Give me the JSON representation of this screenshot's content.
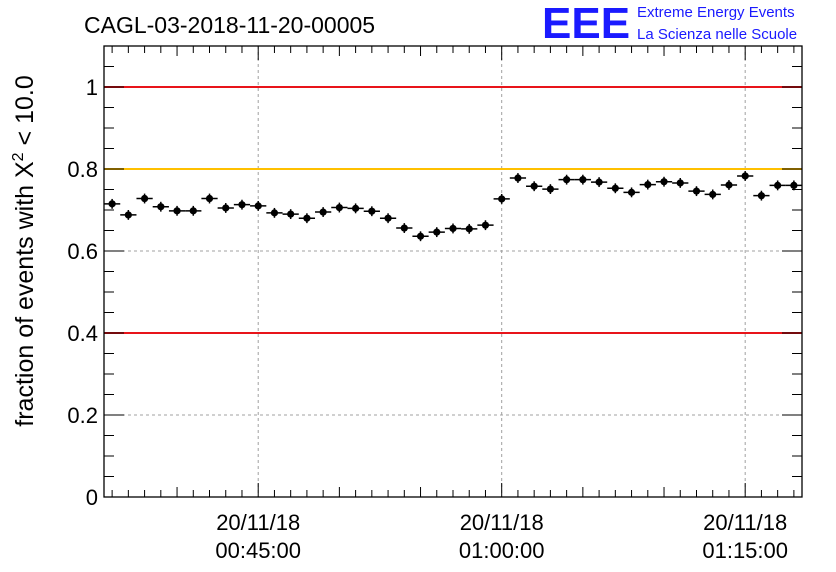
{
  "chart_data": {
    "type": "scatter",
    "title": "CAGL-03-2018-11-20-00005",
    "ylabel": "fraction of events with Χ² < 10.0",
    "ylabel_parts": {
      "pre": "fraction of events with Χ",
      "sup": "2",
      "post": " < 10.0"
    },
    "xlabel": "",
    "ylim": [
      0,
      1.1
    ],
    "x_time_range": [
      "20/11/18 00:35:30",
      "20/11/18 01:18:30"
    ],
    "yticks": [
      "0",
      "0.2",
      "0.4",
      "0.6",
      "0.8",
      "1"
    ],
    "xticks": [
      {
        "date": "20/11/18",
        "time": "00:45:00",
        "minutes": 45
      },
      {
        "date": "20/11/18",
        "time": "01:00:00",
        "minutes": 60
      },
      {
        "date": "20/11/18",
        "time": "01:15:00",
        "minutes": 75
      }
    ],
    "grid": true,
    "reference_lines": [
      {
        "y": 1.0,
        "color": "#e8141a"
      },
      {
        "y": 0.8,
        "color": "#ffc000"
      },
      {
        "y": 0.4,
        "color": "#e8141a"
      }
    ],
    "marker_color": "#000000",
    "series": [
      {
        "x_unit": "minutes after 00:00 on 20/11/18",
        "x": [
          36,
          37,
          38,
          39,
          40,
          41,
          42,
          43,
          44,
          45,
          46,
          47,
          48,
          49,
          50,
          51,
          52,
          53,
          54,
          55,
          56,
          57,
          58,
          59,
          60,
          61,
          62,
          63,
          64,
          65,
          66,
          67,
          68,
          69,
          70,
          71,
          72,
          73,
          74,
          75,
          76,
          77,
          78
        ],
        "y": [
          0.715,
          0.688,
          0.728,
          0.708,
          0.698,
          0.698,
          0.728,
          0.705,
          0.713,
          0.71,
          0.693,
          0.69,
          0.68,
          0.695,
          0.706,
          0.704,
          0.697,
          0.68,
          0.656,
          0.636,
          0.646,
          0.655,
          0.654,
          0.663,
          0.727,
          0.778,
          0.758,
          0.751,
          0.774,
          0.774,
          0.768,
          0.753,
          0.743,
          0.762,
          0.769,
          0.766,
          0.746,
          0.738,
          0.761,
          0.783,
          0.735,
          0.76,
          0.76
        ],
        "yerr": 0.012
      }
    ]
  },
  "logo": {
    "letters": "EEE",
    "line1": "Extreme Energy Events",
    "line2": "La Scienza nelle Scuole"
  }
}
